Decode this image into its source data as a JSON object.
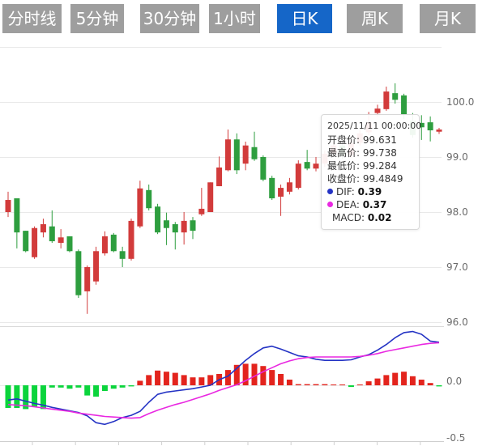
{
  "toolbar": {
    "buttons": [
      {
        "label": "分时线",
        "active": false
      },
      {
        "label": "5分钟",
        "active": false
      },
      {
        "label": "30分钟",
        "active": false
      },
      {
        "label": "1小时",
        "active": false
      },
      {
        "label": "日K",
        "active": true
      },
      {
        "label": "周K",
        "active": false
      },
      {
        "label": "月K",
        "active": false
      }
    ]
  },
  "axis": {
    "price_labels": [
      "100.0",
      "99.0",
      "98.0",
      "97.0",
      "96.0"
    ],
    "macd_labels": [
      "0.0",
      "-0.5"
    ]
  },
  "tooltip": {
    "date": "2025/11/11 00:00:00",
    "open_label": "开盘价:",
    "open_value": "99.631",
    "high_label": "最高价:",
    "high_value": "99.738",
    "low_label": "最低价:",
    "low_value": "99.284",
    "close_label": "收盘价:",
    "close_value": "99.4849",
    "dif_label": "DIF:",
    "dif_value": "0.39",
    "dea_label": "DEA:",
    "dea_value": "0.37",
    "macd_label": "MACD:",
    "macd_value": "0.02"
  },
  "colors": {
    "up": "#d23b3b",
    "down": "#2e9e3f",
    "hist_up": "#e3241d",
    "hist_down": "#0bd43c",
    "dif": "#2433c4",
    "dea": "#e928e1",
    "grid": "#e9e9e9",
    "separator": "#d9d9d9",
    "axis_line": "#cfcfcf",
    "tab_bg": "#9e9e9e",
    "active_tab": "#1566c8"
  },
  "chart_data": {
    "type": "candlestick+macd",
    "up_means": "red = close >= open, green = close < open",
    "hovered": {
      "index": 48,
      "date": "2025/11/11 00:00:00",
      "open": 99.631,
      "high": 99.738,
      "low": 99.284,
      "close": 99.4849,
      "dif": 0.39,
      "dea": 0.37,
      "macd": 0.02
    },
    "panels": [
      {
        "type": "candlestick",
        "ylim": [
          95.8,
          101.1
        ],
        "grid_prices": [
          101,
          100,
          99,
          98,
          97,
          96
        ],
        "candles_ohlc": [
          [
            98.0,
            98.37,
            97.91,
            98.22
          ],
          [
            98.25,
            98.25,
            97.34,
            97.63
          ],
          [
            97.66,
            97.66,
            97.27,
            97.29
          ],
          [
            97.18,
            97.74,
            97.15,
            97.71
          ],
          [
            97.63,
            97.88,
            97.54,
            97.78
          ],
          [
            97.74,
            98.03,
            97.44,
            97.47
          ],
          [
            97.44,
            97.69,
            97.34,
            97.54
          ],
          [
            97.56,
            97.56,
            97.27,
            97.29
          ],
          [
            97.29,
            97.32,
            96.44,
            96.49
          ],
          [
            96.56,
            97.03,
            96.15,
            97.0
          ],
          [
            96.74,
            97.37,
            96.68,
            97.29
          ],
          [
            97.25,
            97.65,
            97.21,
            97.56
          ],
          [
            97.59,
            97.62,
            97.27,
            97.29
          ],
          [
            97.29,
            97.37,
            97.0,
            97.15
          ],
          [
            97.15,
            97.88,
            97.12,
            97.84
          ],
          [
            97.74,
            98.57,
            97.71,
            98.43
          ],
          [
            98.4,
            98.5,
            98.03,
            98.07
          ],
          [
            98.1,
            98.15,
            97.6,
            97.63
          ],
          [
            97.85,
            97.99,
            97.4,
            97.71
          ],
          [
            97.78,
            97.82,
            97.32,
            97.63
          ],
          [
            97.63,
            98.0,
            97.41,
            97.84
          ],
          [
            97.85,
            97.91,
            97.51,
            97.66
          ],
          [
            97.96,
            98.44,
            97.93,
            98.06
          ],
          [
            98.0,
            98.54,
            98.0,
            98.54
          ],
          [
            98.47,
            99.01,
            98.47,
            98.81
          ],
          [
            98.76,
            99.5,
            98.74,
            99.32
          ],
          [
            99.32,
            99.43,
            98.69,
            98.76
          ],
          [
            98.88,
            99.28,
            98.76,
            99.21
          ],
          [
            99.18,
            99.46,
            98.93,
            98.96
          ],
          [
            99.0,
            99.03,
            98.56,
            98.59
          ],
          [
            98.62,
            98.66,
            98.22,
            98.25
          ],
          [
            98.28,
            98.5,
            97.93,
            98.44
          ],
          [
            98.37,
            98.62,
            98.32,
            98.54
          ],
          [
            98.44,
            98.94,
            98.41,
            98.88
          ],
          [
            98.91,
            99.13,
            98.76,
            98.79
          ],
          [
            98.79,
            99.0,
            98.74,
            98.88
          ],
          [
            98.88,
            99.12,
            98.82,
            99.06
          ],
          [
            99.06,
            99.27,
            99.0,
            99.21
          ],
          [
            99.21,
            99.25,
            98.97,
            99.03
          ],
          [
            99.03,
            99.32,
            98.99,
            99.26
          ],
          [
            99.26,
            99.49,
            99.21,
            99.43
          ],
          [
            99.45,
            99.82,
            99.4,
            99.63
          ],
          [
            99.8,
            99.95,
            99.74,
            99.88
          ],
          [
            99.87,
            100.28,
            99.84,
            100.19
          ],
          [
            100.16,
            100.34,
            99.97,
            100.04
          ],
          [
            100.12,
            100.15,
            99.69,
            99.76
          ],
          [
            99.66,
            99.8,
            99.35,
            99.4
          ],
          [
            99.62,
            99.76,
            99.31,
            99.54
          ],
          [
            99.631,
            99.738,
            99.284,
            99.4849
          ],
          [
            99.46,
            99.53,
            99.42,
            99.5
          ]
        ]
      },
      {
        "type": "macd",
        "ylim": [
          -0.5,
          0.5
        ],
        "grid_values": [
          0.0,
          -0.5
        ],
        "histogram": [
          -0.2,
          -0.2,
          -0.21,
          -0.19,
          -0.21,
          -0.02,
          -0.02,
          -0.03,
          -0.02,
          -0.09,
          -0.1,
          -0.05,
          -0.03,
          -0.02,
          -0.01,
          0.04,
          0.09,
          0.13,
          0.12,
          0.11,
          0.09,
          0.07,
          0.07,
          0.09,
          0.1,
          0.135,
          0.18,
          0.19,
          0.19,
          0.17,
          0.135,
          0.1,
          0.05,
          0.01,
          0.01,
          0.01,
          0.01,
          0.005,
          0.005,
          -0.015,
          0.005,
          0.035,
          0.06,
          0.09,
          0.11,
          0.12,
          0.08,
          0.05,
          0.02,
          -0.01
        ],
        "dif": [
          -0.13,
          -0.12,
          -0.14,
          -0.16,
          -0.175,
          -0.195,
          -0.21,
          -0.225,
          -0.24,
          -0.27,
          -0.33,
          -0.345,
          -0.32,
          -0.285,
          -0.265,
          -0.23,
          -0.15,
          -0.08,
          -0.06,
          -0.05,
          -0.04,
          -0.03,
          -0.015,
          0.0,
          0.05,
          0.08,
          0.15,
          0.22,
          0.28,
          0.33,
          0.345,
          0.32,
          0.29,
          0.26,
          0.25,
          0.23,
          0.22,
          0.22,
          0.22,
          0.225,
          0.25,
          0.27,
          0.31,
          0.36,
          0.42,
          0.465,
          0.475,
          0.45,
          0.39,
          0.38
        ],
        "dea": [
          -0.17,
          -0.175,
          -0.18,
          -0.19,
          -0.2,
          -0.21,
          -0.22,
          -0.23,
          -0.245,
          -0.255,
          -0.265,
          -0.275,
          -0.28,
          -0.285,
          -0.29,
          -0.285,
          -0.25,
          -0.22,
          -0.195,
          -0.17,
          -0.15,
          -0.125,
          -0.1,
          -0.075,
          -0.045,
          -0.02,
          0.005,
          0.04,
          0.08,
          0.12,
          0.155,
          0.19,
          0.215,
          0.235,
          0.245,
          0.25,
          0.25,
          0.25,
          0.25,
          0.25,
          0.255,
          0.265,
          0.28,
          0.3,
          0.315,
          0.33,
          0.345,
          0.36,
          0.37,
          0.375
        ]
      }
    ]
  }
}
